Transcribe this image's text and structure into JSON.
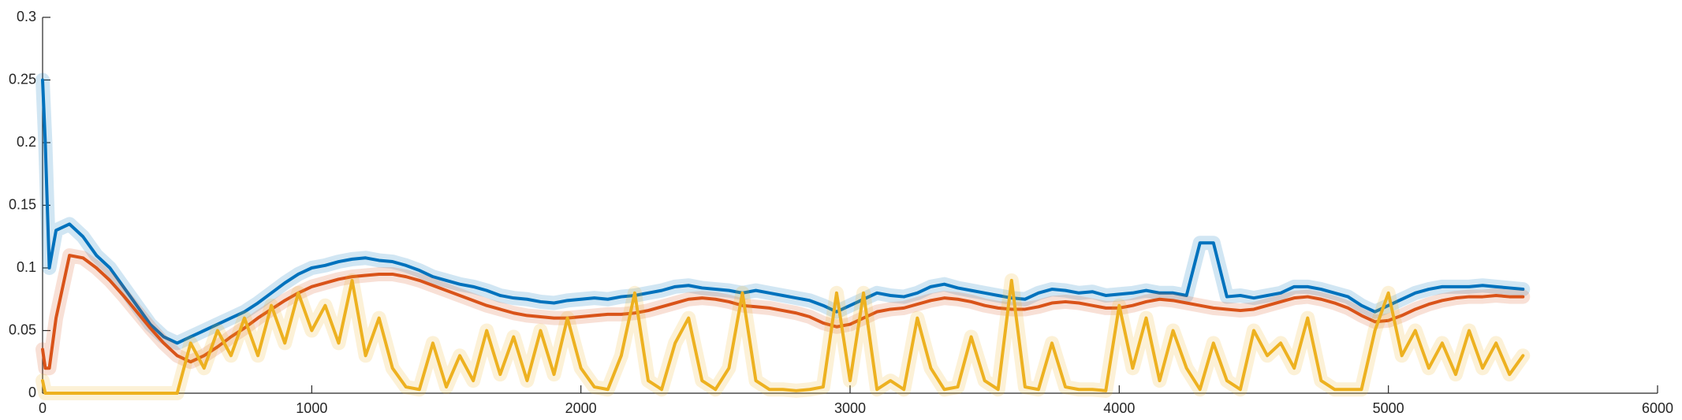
{
  "chart_data": {
    "type": "line",
    "x": [
      0,
      10,
      25,
      50,
      100,
      150,
      200,
      250,
      300,
      350,
      400,
      450,
      500,
      550,
      600,
      650,
      700,
      750,
      800,
      850,
      900,
      950,
      1000,
      1050,
      1100,
      1150,
      1200,
      1250,
      1300,
      1350,
      1400,
      1450,
      1500,
      1550,
      1600,
      1650,
      1700,
      1750,
      1800,
      1850,
      1900,
      1950,
      2000,
      2050,
      2100,
      2150,
      2200,
      2250,
      2300,
      2350,
      2400,
      2450,
      2500,
      2550,
      2600,
      2650,
      2700,
      2750,
      2800,
      2850,
      2900,
      2950,
      3000,
      3050,
      3100,
      3150,
      3200,
      3250,
      3300,
      3350,
      3400,
      3450,
      3500,
      3550,
      3600,
      3650,
      3700,
      3750,
      3800,
      3850,
      3900,
      3950,
      4000,
      4050,
      4100,
      4150,
      4200,
      4250,
      4300,
      4350,
      4400,
      4450,
      4500,
      4550,
      4600,
      4650,
      4700,
      4750,
      4800,
      4850,
      4900,
      4950,
      5000,
      5050,
      5100,
      5150,
      5200,
      5250,
      5300,
      5350,
      5400,
      5450,
      5500
    ],
    "series": [
      {
        "color": "#0072bd",
        "values": [
          0.25,
          0.2,
          0.1,
          0.13,
          0.135,
          0.125,
          0.11,
          0.1,
          0.085,
          0.07,
          0.055,
          0.045,
          0.04,
          0.045,
          0.05,
          0.055,
          0.06,
          0.065,
          0.072,
          0.08,
          0.088,
          0.095,
          0.1,
          0.102,
          0.105,
          0.107,
          0.108,
          0.106,
          0.105,
          0.102,
          0.098,
          0.093,
          0.09,
          0.087,
          0.085,
          0.082,
          0.078,
          0.076,
          0.075,
          0.073,
          0.072,
          0.074,
          0.075,
          0.076,
          0.075,
          0.077,
          0.078,
          0.08,
          0.082,
          0.085,
          0.086,
          0.084,
          0.083,
          0.082,
          0.08,
          0.082,
          0.08,
          0.078,
          0.076,
          0.074,
          0.07,
          0.065,
          0.07,
          0.075,
          0.08,
          0.078,
          0.077,
          0.08,
          0.085,
          0.087,
          0.084,
          0.082,
          0.08,
          0.078,
          0.076,
          0.075,
          0.08,
          0.083,
          0.082,
          0.08,
          0.081,
          0.078,
          0.079,
          0.08,
          0.082,
          0.08,
          0.08,
          0.078,
          0.12,
          0.12,
          0.077,
          0.078,
          0.076,
          0.078,
          0.08,
          0.085,
          0.085,
          0.083,
          0.08,
          0.077,
          0.07,
          0.065,
          0.07,
          0.075,
          0.08,
          0.083,
          0.085,
          0.085,
          0.085,
          0.086,
          0.085,
          0.084,
          0.083
        ]
      },
      {
        "color": "#d95319",
        "values": [
          0.035,
          0.02,
          0.02,
          0.06,
          0.11,
          0.108,
          0.1,
          0.09,
          0.078,
          0.065,
          0.052,
          0.04,
          0.03,
          0.025,
          0.03,
          0.037,
          0.045,
          0.052,
          0.06,
          0.067,
          0.074,
          0.08,
          0.085,
          0.088,
          0.091,
          0.093,
          0.094,
          0.095,
          0.095,
          0.093,
          0.09,
          0.086,
          0.082,
          0.078,
          0.074,
          0.07,
          0.067,
          0.064,
          0.062,
          0.061,
          0.06,
          0.06,
          0.061,
          0.062,
          0.063,
          0.063,
          0.064,
          0.066,
          0.069,
          0.072,
          0.075,
          0.076,
          0.075,
          0.073,
          0.07,
          0.069,
          0.068,
          0.066,
          0.064,
          0.061,
          0.056,
          0.053,
          0.055,
          0.06,
          0.065,
          0.067,
          0.068,
          0.071,
          0.074,
          0.076,
          0.075,
          0.073,
          0.07,
          0.068,
          0.067,
          0.067,
          0.069,
          0.072,
          0.073,
          0.072,
          0.07,
          0.068,
          0.068,
          0.07,
          0.073,
          0.075,
          0.074,
          0.072,
          0.07,
          0.068,
          0.067,
          0.066,
          0.067,
          0.07,
          0.073,
          0.076,
          0.077,
          0.075,
          0.072,
          0.068,
          0.062,
          0.057,
          0.058,
          0.062,
          0.067,
          0.071,
          0.074,
          0.076,
          0.077,
          0.077,
          0.078,
          0.077,
          0.077
        ]
      },
      {
        "color": "#edb120",
        "values": [
          0.01,
          0,
          0,
          0,
          0,
          0,
          0,
          0,
          0,
          0,
          0,
          0,
          0,
          0.04,
          0.02,
          0.05,
          0.03,
          0.06,
          0.03,
          0.07,
          0.04,
          0.08,
          0.05,
          0.07,
          0.04,
          0.09,
          0.03,
          0.06,
          0.02,
          0.005,
          0.003,
          0.04,
          0.005,
          0.03,
          0.01,
          0.05,
          0.015,
          0.045,
          0.01,
          0.05,
          0.015,
          0.06,
          0.02,
          0.005,
          0.003,
          0.03,
          0.08,
          0.01,
          0.003,
          0.04,
          0.06,
          0.01,
          0.003,
          0.02,
          0.08,
          0.01,
          0.003,
          0.003,
          0.002,
          0.003,
          0.005,
          0.08,
          0.01,
          0.08,
          0.003,
          0.01,
          0.003,
          0.06,
          0.02,
          0.003,
          0.005,
          0.045,
          0.01,
          0.003,
          0.09,
          0.005,
          0.003,
          0.04,
          0.005,
          0.003,
          0.003,
          0.002,
          0.07,
          0.02,
          0.06,
          0.01,
          0.05,
          0.02,
          0.003,
          0.04,
          0.01,
          0.003,
          0.05,
          0.03,
          0.04,
          0.02,
          0.06,
          0.01,
          0.003,
          0.003,
          0.003,
          0.05,
          0.08,
          0.03,
          0.05,
          0.02,
          0.04,
          0.015,
          0.05,
          0.02,
          0.04,
          0.015,
          0.03
        ]
      }
    ],
    "xlim": [
      0,
      6000
    ],
    "xticks": [
      0,
      1000,
      2000,
      3000,
      4000,
      5000,
      6000
    ],
    "ylim": [
      0,
      0.3
    ],
    "yticks": [
      0,
      0.05,
      0.1,
      0.15,
      0.2,
      0.25,
      0.3
    ]
  }
}
